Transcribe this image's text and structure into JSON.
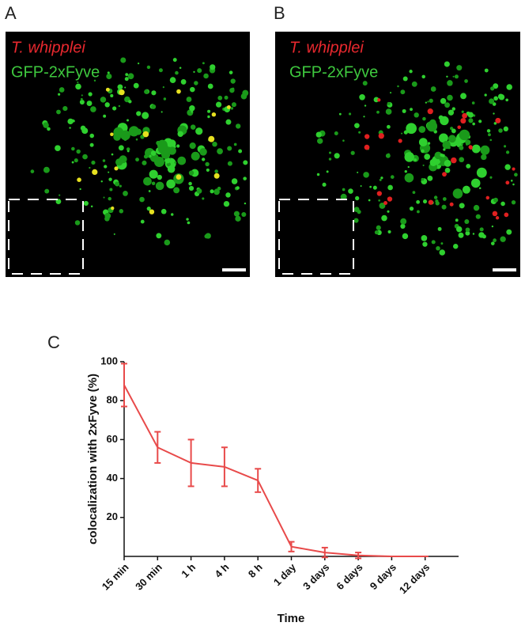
{
  "panels": [
    {
      "label": "A",
      "organism": "T. whipplei",
      "marker": "GFP-2xFyve"
    },
    {
      "label": "B",
      "organism": "T. whipplei",
      "marker": "GFP-2xFyve"
    }
  ],
  "chart_data": {
    "type": "line",
    "panel_label": "C",
    "x_label": "Time",
    "y_label": "colocalization with 2xFyve (%)",
    "categories": [
      "15 min",
      "30 min",
      "1 h",
      "4 h",
      "8 h",
      "1 day",
      "3 days",
      "6 days",
      "9 days",
      "12 days"
    ],
    "series": [
      {
        "color": "#e84a4a",
        "values": [
          88,
          56,
          48,
          46,
          39,
          5,
          2,
          0.5,
          0,
          0
        ],
        "errors": [
          11,
          8,
          12,
          10,
          6,
          2.5,
          2.5,
          1.5,
          0,
          0
        ]
      }
    ],
    "ylim": [
      0,
      100
    ],
    "yticks": [
      20,
      40,
      60,
      80,
      100
    ]
  }
}
